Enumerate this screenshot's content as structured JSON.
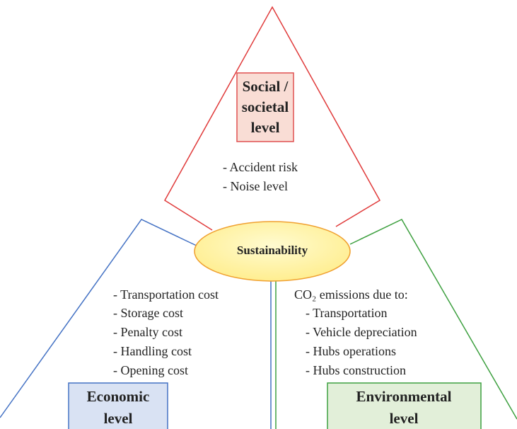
{
  "center": {
    "label": "Sustainability"
  },
  "social": {
    "title": [
      "Social /",
      "societal",
      "level"
    ],
    "items": [
      "- Accident risk",
      "- Noise level"
    ]
  },
  "economic": {
    "title": [
      "Economic",
      "level"
    ],
    "items": [
      "- Transportation cost",
      "- Storage cost",
      "- Penalty cost",
      "- Handling cost",
      "- Opening cost"
    ]
  },
  "environmental": {
    "title": [
      "Environmental",
      "level"
    ],
    "heading": "CO₂ emissions due to:",
    "items": [
      "- Transportation",
      "- Vehicle depreciation",
      "- Hubs operations",
      "- Hubs construction"
    ]
  }
}
